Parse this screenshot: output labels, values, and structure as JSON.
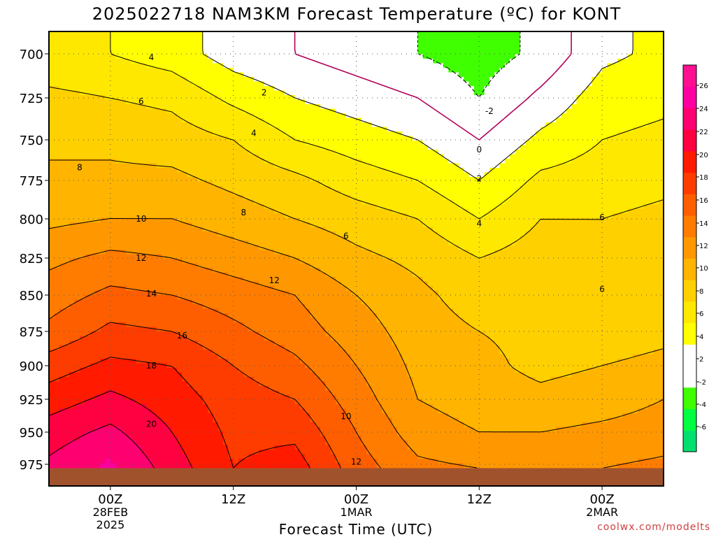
{
  "chart_data": {
    "type": "heatmap",
    "title": "2025022718 NAM3KM Forecast Temperature (ºC) for KONT",
    "xlabel": "Forecast Time (UTC)",
    "ylabel": "",
    "y_ticks": [
      700,
      725,
      750,
      775,
      800,
      825,
      850,
      875,
      900,
      925,
      950,
      975
    ],
    "y_tick_labels": [
      "700",
      "725",
      "750",
      "775",
      "800",
      "825",
      "850",
      "875",
      "900",
      "925",
      "950",
      "975"
    ],
    "ylim": [
      978,
      685
    ],
    "x_tick_hours": [
      6,
      18,
      30,
      42,
      54
    ],
    "x_ticks": [
      {
        "lines": [
          "00Z",
          "28FEB",
          "2025"
        ]
      },
      {
        "lines": [
          "12Z"
        ]
      },
      {
        "lines": [
          "00Z",
          "1MAR"
        ]
      },
      {
        "lines": [
          "12Z"
        ]
      },
      {
        "lines": [
          "00Z",
          "2MAR"
        ]
      }
    ],
    "xlim_hours": [
      0,
      60
    ],
    "grid": true,
    "surface_color": "#a0522d",
    "colorbar": {
      "levels": [
        -8,
        -6,
        -4,
        -2,
        0,
        2,
        4,
        6,
        8,
        10,
        12,
        14,
        16,
        18,
        20,
        22,
        24,
        26,
        28
      ],
      "colors": [
        "#00e070",
        "#00ff40",
        "#40ff00",
        "#ffffff",
        "#ffffff",
        "#ffff00",
        "#ffe800",
        "#ffd000",
        "#ffb400",
        "#ff9800",
        "#ff7c00",
        "#ff5e00",
        "#ff3c00",
        "#ff1a00",
        "#ff0040",
        "#ff0070",
        "#ff00a0",
        "#ff1090"
      ],
      "labels": [
        "26",
        "24",
        "22",
        "20",
        "18",
        "16",
        "14",
        "12",
        "10",
        "8",
        "6",
        "4",
        "2",
        "-2",
        "-4",
        "-6"
      ]
    },
    "temperature_profiles": [
      {
        "hour": 0,
        "p": [
          700,
          725,
          750,
          775,
          800,
          825,
          850,
          875,
          900,
          925,
          950,
          978
        ],
        "t": [
          4.5,
          6.5,
          7.5,
          8.5,
          9.5,
          11.5,
          13.0,
          14.5,
          17.0,
          19.0,
          21.0,
          22.5
        ]
      },
      {
        "hour": 6,
        "p": [
          700,
          725,
          750,
          775,
          800,
          825,
          850,
          875,
          900,
          925,
          950,
          978
        ],
        "t": [
          4.0,
          6.0,
          7.5,
          8.5,
          10.0,
          12.5,
          14.5,
          16.5,
          18.5,
          20.5,
          22.5,
          24.5
        ]
      },
      {
        "hour": 12,
        "p": [
          700,
          725,
          750,
          775,
          800,
          825,
          850,
          875,
          900,
          925,
          950,
          978
        ],
        "t": [
          3.0,
          5.5,
          7.0,
          8.5,
          10.0,
          12.0,
          14.0,
          16.0,
          18.0,
          19.0,
          20.0,
          21.0
        ]
      },
      {
        "hour": 18,
        "p": [
          700,
          725,
          750,
          775,
          800,
          825,
          850,
          875,
          900,
          925,
          950,
          978
        ],
        "t": [
          1.0,
          3.5,
          6.0,
          7.5,
          9.0,
          11.0,
          13.0,
          14.5,
          16.0,
          17.0,
          17.5,
          18.0
        ]
      },
      {
        "hour": 24,
        "p": [
          700,
          725,
          750,
          775,
          800,
          825,
          850,
          875,
          900,
          925,
          950,
          978
        ],
        "t": [
          0.0,
          2.0,
          4.0,
          6.5,
          8.0,
          10.0,
          12.0,
          13.0,
          14.5,
          16.0,
          17.5,
          19.0
        ]
      },
      {
        "hour": 30,
        "p": [
          700,
          725,
          750,
          775,
          800,
          825,
          850,
          875,
          900,
          925,
          950,
          978
        ],
        "t": [
          -1.0,
          1.0,
          3.0,
          5.0,
          7.0,
          8.5,
          10.0,
          11.0,
          12.0,
          13.0,
          14.0,
          15.0
        ]
      },
      {
        "hour": 36,
        "p": [
          700,
          725,
          750,
          775,
          800,
          825,
          850,
          875,
          900,
          925,
          950,
          978
        ],
        "t": [
          -2.0,
          0.0,
          2.0,
          4.0,
          6.0,
          7.5,
          8.5,
          9.0,
          9.5,
          10.0,
          11.0,
          12.5
        ]
      },
      {
        "hour": 42,
        "p": [
          700,
          725,
          750,
          775,
          800,
          825,
          850,
          875,
          900,
          925,
          950,
          978
        ],
        "t": [
          -3.0,
          -2.0,
          0.0,
          2.0,
          4.0,
          6.0,
          7.0,
          8.0,
          8.5,
          9.0,
          10.0,
          12.0
        ]
      },
      {
        "hour": 48,
        "p": [
          700,
          725,
          750,
          775,
          800,
          825,
          850,
          875,
          900,
          925,
          950,
          978
        ],
        "t": [
          -1.5,
          0.5,
          2.5,
          4.5,
          6.0,
          7.0,
          7.0,
          7.5,
          7.5,
          8.5,
          10.0,
          12.0
        ]
      },
      {
        "hour": 54,
        "p": [
          700,
          725,
          750,
          775,
          800,
          825,
          850,
          875,
          900,
          925,
          950,
          978
        ],
        "t": [
          1.5,
          3.0,
          4.0,
          5.0,
          6.0,
          6.5,
          6.5,
          7.0,
          8.0,
          9.0,
          10.5,
          12.0
        ]
      },
      {
        "hour": 60,
        "p": [
          700,
          725,
          750,
          775,
          800,
          825,
          850,
          875,
          900,
          925,
          950,
          978
        ],
        "t": [
          2.5,
          3.5,
          4.5,
          5.5,
          6.5,
          7.0,
          7.0,
          7.5,
          8.5,
          10.0,
          11.0,
          12.5
        ]
      }
    ],
    "contour_labels": [
      {
        "text": "4",
        "hour": 10,
        "p": 702
      },
      {
        "text": "6",
        "hour": 9,
        "p": 727
      },
      {
        "text": "8",
        "hour": 3,
        "p": 767
      },
      {
        "text": "10",
        "hour": 9,
        "p": 800
      },
      {
        "text": "12",
        "hour": 9,
        "p": 825
      },
      {
        "text": "14",
        "hour": 10,
        "p": 849
      },
      {
        "text": "16",
        "hour": 13,
        "p": 878
      },
      {
        "text": "18",
        "hour": 10,
        "p": 900
      },
      {
        "text": "20",
        "hour": 10,
        "p": 944
      },
      {
        "text": "2",
        "hour": 21,
        "p": 722
      },
      {
        "text": "4",
        "hour": 20,
        "p": 746
      },
      {
        "text": "8",
        "hour": 19,
        "p": 796
      },
      {
        "text": "12",
        "hour": 22,
        "p": 840
      },
      {
        "text": "6",
        "hour": 29,
        "p": 811
      },
      {
        "text": "10",
        "hour": 29,
        "p": 938
      },
      {
        "text": "12",
        "hour": 30,
        "p": 973
      },
      {
        "text": "-2",
        "hour": 43,
        "p": 733
      },
      {
        "text": "0",
        "hour": 42,
        "p": 756
      },
      {
        "text": "2",
        "hour": 42,
        "p": 774
      },
      {
        "text": "4",
        "hour": 42,
        "p": 803
      },
      {
        "text": "6",
        "hour": 54,
        "p": 799
      },
      {
        "text": "6",
        "hour": 54,
        "p": 846
      }
    ]
  },
  "credit": "coolwx.com/modelts"
}
